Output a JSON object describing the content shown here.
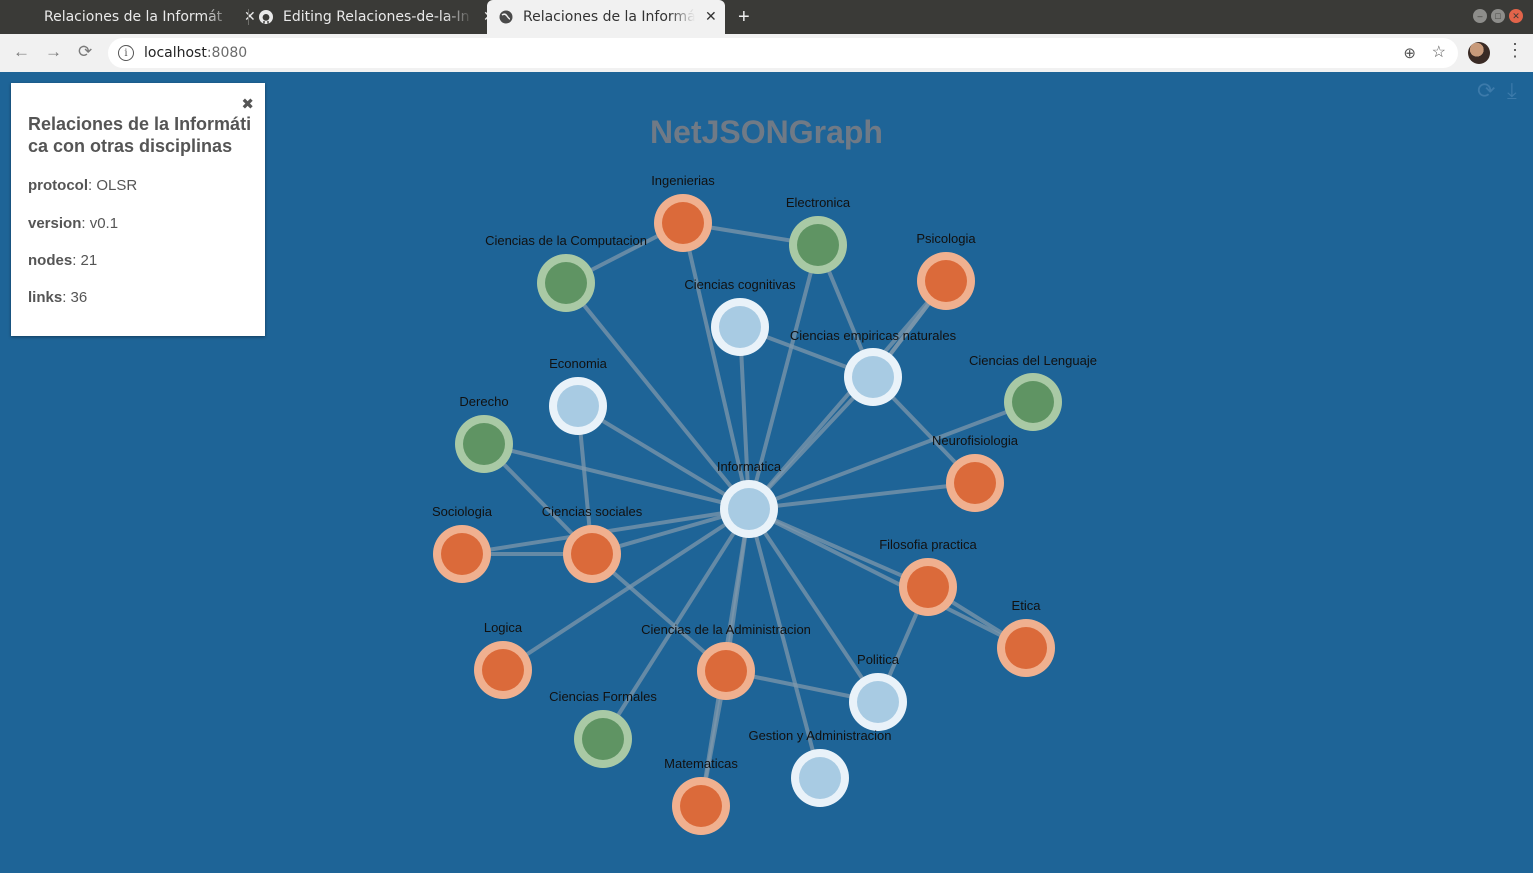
{
  "browser": {
    "tabs": [
      {
        "title": "Relaciones de la Informát",
        "icon": "blank-page-icon"
      },
      {
        "title": "Editing Relaciones-de-la-In",
        "icon": "github-icon"
      },
      {
        "title": "Relaciones de la Informát",
        "icon": "globe-icon",
        "active": true
      }
    ],
    "new_tab": "+",
    "url_host": "localhost",
    "url_port": ":8080"
  },
  "page": {
    "graph_title": "NetJSONGraph",
    "panel": {
      "close": "✖",
      "title": "Relaciones de la Informática con otras disciplinas",
      "fields": [
        {
          "key": "protocol",
          "value": ": OLSR"
        },
        {
          "key": "version",
          "value": ": v0.1"
        },
        {
          "key": "nodes",
          "value": ": 21"
        },
        {
          "key": "links",
          "value": ": 36"
        }
      ]
    }
  },
  "colors": {
    "background": "#1e6497",
    "orange": "#db6a3a",
    "orange_ring": "#f0b08f",
    "green": "#5f9463",
    "green_ring": "#a9c9a5",
    "light": "#a8cbe3",
    "light_ring": "#e9f2f9",
    "link": "#7e97ab"
  },
  "graph": {
    "nodes": [
      {
        "id": "Informatica",
        "label": "Informatica",
        "group": "light"
      },
      {
        "id": "Ingenierias",
        "label": "Ingenierias",
        "group": "orange"
      },
      {
        "id": "Electronica",
        "label": "Electronica",
        "group": "green"
      },
      {
        "id": "Psicologia",
        "label": "Psicologia",
        "group": "orange"
      },
      {
        "id": "CComp",
        "label": "Ciencias de la Computacion",
        "group": "green"
      },
      {
        "id": "CCog",
        "label": "Ciencias cognitivas",
        "group": "light"
      },
      {
        "id": "CEmp",
        "label": "Ciencias empiricas naturales",
        "group": "light"
      },
      {
        "id": "CLeng",
        "label": "Ciencias del Lenguaje",
        "group": "green"
      },
      {
        "id": "Economia",
        "label": "Economia",
        "group": "light"
      },
      {
        "id": "Derecho",
        "label": "Derecho",
        "group": "green"
      },
      {
        "id": "Neuro",
        "label": "Neurofisiologia",
        "group": "orange"
      },
      {
        "id": "Sociologia",
        "label": "Sociologia",
        "group": "orange"
      },
      {
        "id": "CSoc",
        "label": "Ciencias sociales",
        "group": "orange"
      },
      {
        "id": "FilPrac",
        "label": "Filosofia practica",
        "group": "orange"
      },
      {
        "id": "Etica",
        "label": "Etica",
        "group": "orange"
      },
      {
        "id": "Logica",
        "label": "Logica",
        "group": "orange"
      },
      {
        "id": "CAdm",
        "label": "Ciencias de la Administracion",
        "group": "orange"
      },
      {
        "id": "Politica",
        "label": "Politica",
        "group": "light"
      },
      {
        "id": "CForm",
        "label": "Ciencias Formales",
        "group": "green"
      },
      {
        "id": "GestAdm",
        "label": "Gestion y Administracion",
        "group": "light"
      },
      {
        "id": "Matematicas",
        "label": "Matematicas",
        "group": "orange"
      }
    ],
    "links": [
      [
        "Informatica",
        "Ingenierias"
      ],
      [
        "Informatica",
        "Electronica"
      ],
      [
        "Informatica",
        "CComp"
      ],
      [
        "Informatica",
        "CCog"
      ],
      [
        "Informatica",
        "CEmp"
      ],
      [
        "Informatica",
        "CLeng"
      ],
      [
        "Informatica",
        "Economia"
      ],
      [
        "Informatica",
        "Derecho"
      ],
      [
        "Informatica",
        "Neuro"
      ],
      [
        "Informatica",
        "Sociologia"
      ],
      [
        "Informatica",
        "CSoc"
      ],
      [
        "Informatica",
        "FilPrac"
      ],
      [
        "Informatica",
        "Etica"
      ],
      [
        "Informatica",
        "Logica"
      ],
      [
        "Informatica",
        "CAdm"
      ],
      [
        "Informatica",
        "Politica"
      ],
      [
        "Informatica",
        "CForm"
      ],
      [
        "Informatica",
        "GestAdm"
      ],
      [
        "Informatica",
        "Matematicas"
      ],
      [
        "Informatica",
        "Psicologia"
      ],
      [
        "Ingenierias",
        "Electronica"
      ],
      [
        "Ingenierias",
        "CComp"
      ],
      [
        "Electronica",
        "CEmp"
      ],
      [
        "Psicologia",
        "CEmp"
      ],
      [
        "CCog",
        "CEmp"
      ],
      [
        "CEmp",
        "Neuro"
      ],
      [
        "Economia",
        "CSoc"
      ],
      [
        "Derecho",
        "CSoc"
      ],
      [
        "Sociologia",
        "CSoc"
      ],
      [
        "CSoc",
        "CAdm"
      ],
      [
        "FilPrac",
        "Etica"
      ],
      [
        "FilPrac",
        "Politica"
      ],
      [
        "CAdm",
        "Politica"
      ],
      [
        "CAdm",
        "Matematicas"
      ],
      [
        "Informatica",
        "Informatica"
      ],
      [
        "Psicologia",
        "CEmp"
      ]
    ]
  }
}
